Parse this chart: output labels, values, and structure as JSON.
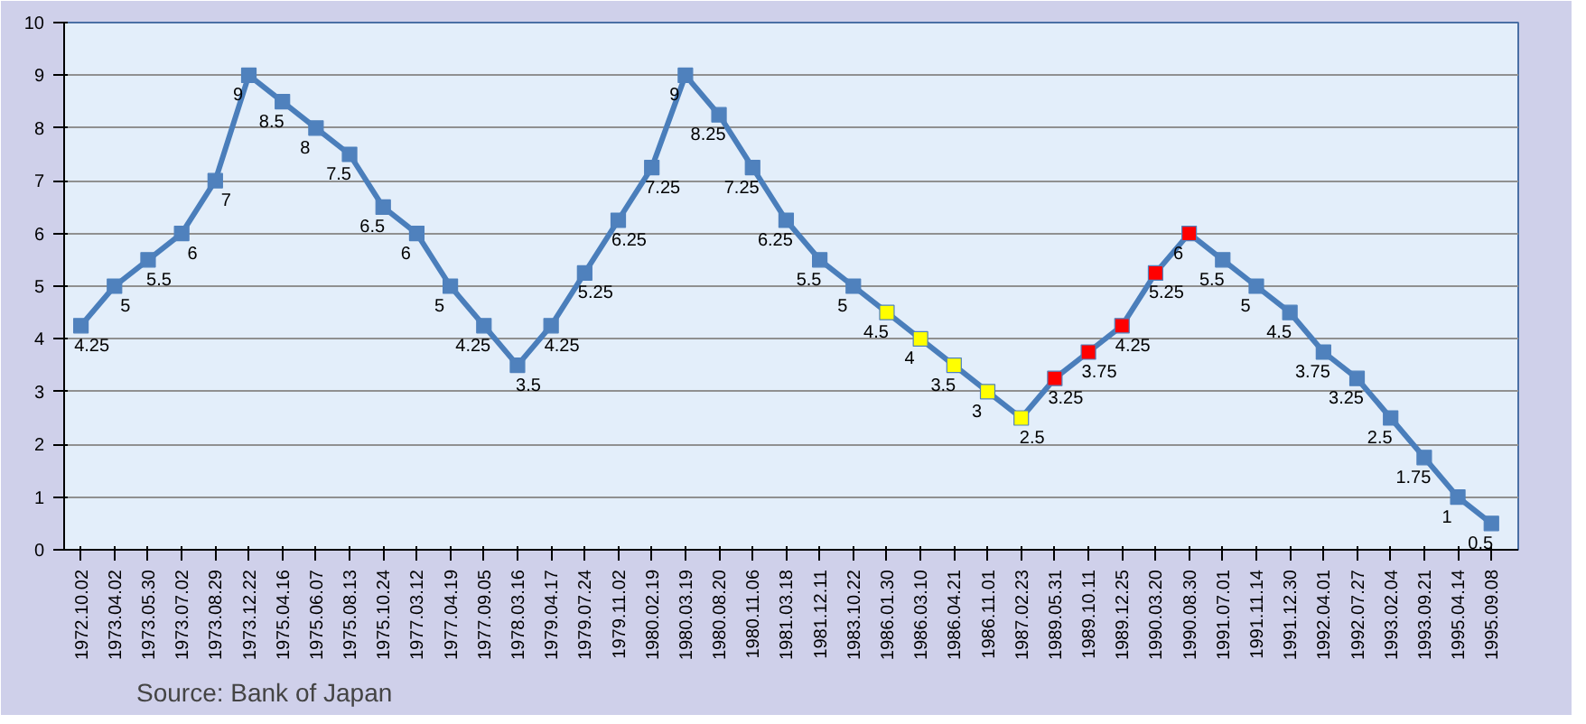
{
  "chart_data": {
    "type": "line",
    "categories": [
      "1972.10.02",
      "1973.04.02",
      "1973.05.30",
      "1973.07.02",
      "1973.08.29",
      "1973.12.22",
      "1975.04.16",
      "1975.06.07",
      "1975.08.13",
      "1975.10.24",
      "1977.03.12",
      "1977.04.19",
      "1977.09.05",
      "1978.03.16",
      "1979.04.17",
      "1979.07.24",
      "1979.11.02",
      "1980.02.19",
      "1980.03.19",
      "1980.08.20",
      "1980.11.06",
      "1981.03.18",
      "1981.12.11",
      "1983.10.22",
      "1986.01.30",
      "1986.03.10",
      "1986.04.21",
      "1986.11.01",
      "1987.02.23",
      "1989.05.31",
      "1989.10.11",
      "1989.12.25",
      "1990.03.20",
      "1990.08.30",
      "1991.07.01",
      "1991.11.14",
      "1991.12.30",
      "1992.04.01",
      "1992.07.27",
      "1993.02.04",
      "1993.09.21",
      "1995.04.14",
      "1995.09.08"
    ],
    "series": [
      {
        "color": "#4a7ebb",
        "values": [
          4.25,
          5,
          5.5,
          6,
          7,
          9,
          8.5,
          8,
          7.5,
          6.5,
          6,
          5,
          4.25,
          3.5,
          4.25,
          5.25,
          6.25,
          7.25,
          9,
          8.25,
          7.25,
          6.25,
          5.5,
          5,
          4.5,
          4,
          3.5,
          3,
          2.5,
          3.25,
          3.75,
          4.25,
          5.25,
          6,
          5.5,
          5,
          4.5,
          3.75,
          3.25,
          2.5,
          1.75,
          1,
          0.5
        ],
        "colors": [
          "#4f81bd",
          "#4f81bd",
          "#4f81bd",
          "#4f81bd",
          "#4f81bd",
          "#4f81bd",
          "#4f81bd",
          "#4f81bd",
          "#4f81bd",
          "#4f81bd",
          "#4f81bd",
          "#4f81bd",
          "#4f81bd",
          "#4f81bd",
          "#4f81bd",
          "#4f81bd",
          "#4f81bd",
          "#4f81bd",
          "#4f81bd",
          "#4f81bd",
          "#4f81bd",
          "#4f81bd",
          "#4f81bd",
          "#4f81bd",
          "#ffff00",
          "#ffff00",
          "#ffff00",
          "#ffff00",
          "#ffff00",
          "#ff0000",
          "#ff0000",
          "#ff0000",
          "#ff0000",
          "#ff0000",
          "#4f81bd",
          "#4f81bd",
          "#4f81bd",
          "#4f81bd",
          "#4f81bd",
          "#4f81bd",
          "#4f81bd",
          "#4f81bd",
          "#4f81bd"
        ]
      }
    ],
    "ylim": [
      0,
      10
    ],
    "yticks": [
      0,
      1,
      2,
      3,
      4,
      5,
      6,
      7,
      8,
      9,
      10
    ],
    "grid": "y",
    "marker": "square",
    "line_style": "solid",
    "data_labels": true,
    "annotations": [
      "Source: Bank of Japan"
    ]
  }
}
